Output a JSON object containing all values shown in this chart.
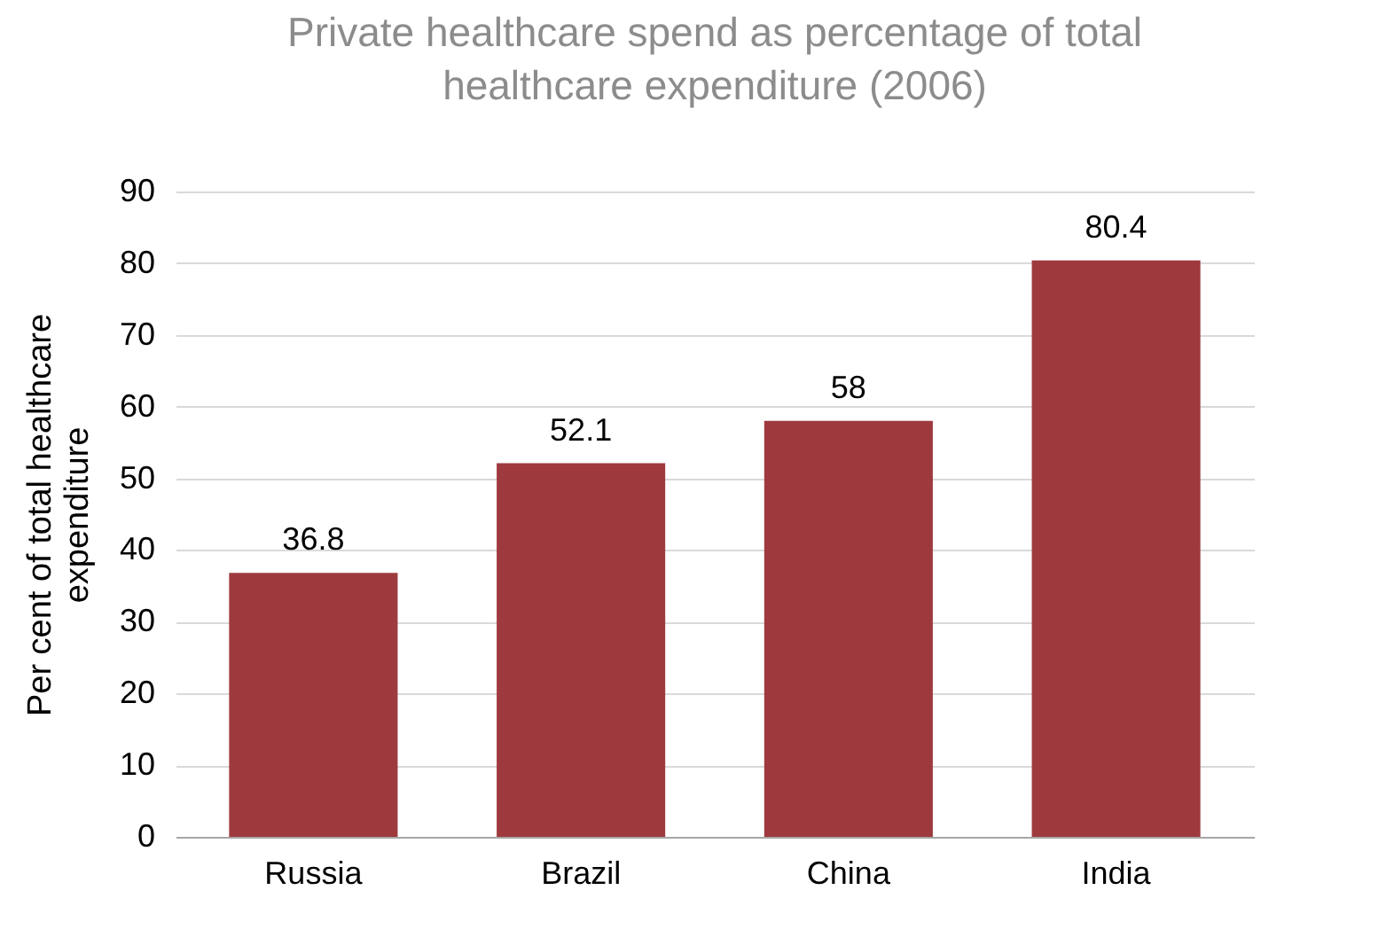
{
  "chart_data": {
    "type": "bar",
    "title": "Private healthcare spend as percentage of total healthcare expenditure (2006)",
    "ylabel": "Per cent of total healthcare expenditure",
    "categories": [
      "Russia",
      "Brazil",
      "China",
      "India"
    ],
    "values": [
      36.8,
      52.1,
      58,
      80.4
    ],
    "color": "#9e3a3e",
    "ylim": [
      0,
      90
    ],
    "yticks": [
      0,
      10,
      20,
      30,
      40,
      50,
      60,
      70,
      80,
      90
    ],
    "grid": "y",
    "data_labels": true
  }
}
